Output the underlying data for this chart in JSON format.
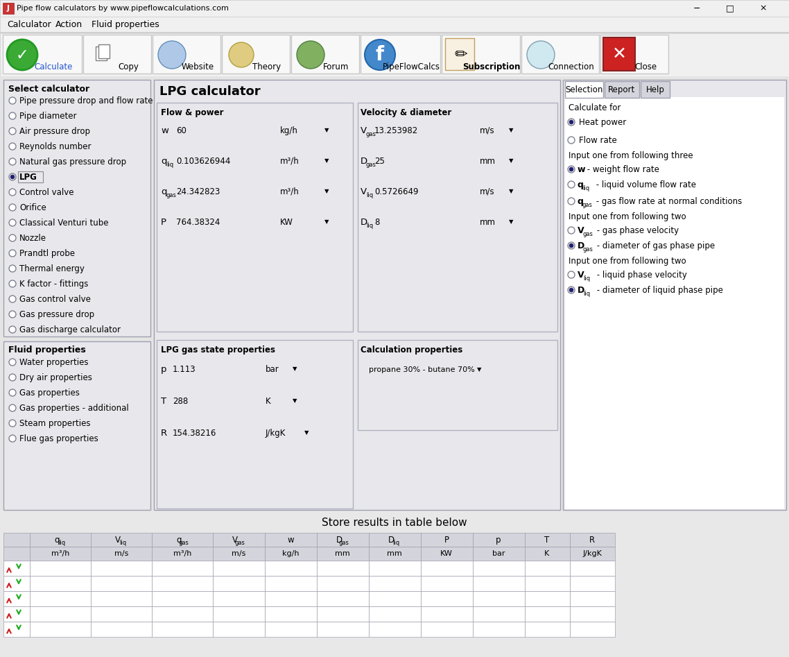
{
  "title_bar": "Pipe flow calculators by www.pipeflowcalculations.com",
  "menu_items": [
    "Calculator",
    "Action",
    "Fluid properties"
  ],
  "bg_color": "#e8e8e8",
  "select_calc_items": [
    "Pipe pressure drop and flow rate",
    "Pipe diameter",
    "Air pressure drop",
    "Reynolds number",
    "Natural gas pressure drop",
    "LPG",
    "Control valve",
    "Orifice",
    "Classical Venturi tube",
    "Nozzle",
    "Prandtl probe",
    "Thermal energy",
    "K factor - fittings",
    "Gas control valve",
    "Gas pressure drop",
    "Gas discharge calculator"
  ],
  "fluid_prop_items": [
    "Water properties",
    "Dry air properties",
    "Gas properties",
    "Gas properties - additional",
    "Steam properties",
    "Flue gas properties"
  ],
  "lpg_title": "LPG calculator",
  "flow_power_label": "Flow & power",
  "velocity_diameter_label": "Velocity & diameter",
  "lpg_gas_state_label": "LPG gas state properties",
  "calc_props_label": "Calculation properties",
  "flow_fields": [
    {
      "label": "w",
      "sub": "",
      "value": "60",
      "unit": "kg/h"
    },
    {
      "label": "q",
      "sub": "liq",
      "value": "0.103626944",
      "unit": "m³/h"
    },
    {
      "label": "q",
      "sub": "gas",
      "value": "24.342823",
      "unit": "m³/h"
    },
    {
      "label": "P",
      "sub": "",
      "value": "764.38324",
      "unit": "KW"
    }
  ],
  "vel_fields": [
    {
      "label": "V",
      "sub": "gas",
      "value": "13.253982",
      "unit": "m/s"
    },
    {
      "label": "D",
      "sub": "gas",
      "value": "25",
      "unit": "mm"
    },
    {
      "label": "V",
      "sub": "liq",
      "value": "0.5726649",
      "unit": "m/s"
    },
    {
      "label": "D",
      "sub": "liq",
      "value": "8",
      "unit": "mm"
    }
  ],
  "state_fields": [
    {
      "label": "p",
      "sub": "",
      "value": "1.113",
      "unit": "bar"
    },
    {
      "label": "T",
      "sub": "",
      "value": "288",
      "unit": "K"
    },
    {
      "label": "R",
      "sub": "",
      "value": "154.38216",
      "unit": "J/kgK"
    }
  ],
  "calc_prop_value": "propane 30% - butane 70%",
  "selection_tabs": [
    "Selection",
    "Report",
    "Help"
  ],
  "calc_for_label": "Calculate for",
  "input_three_label": "Input one from following three",
  "input_two_a_label": "Input one from following two",
  "input_two_b_label": "Input one from following two",
  "store_results_label": "Store results in table below",
  "table_headers_top": [
    "q liq",
    "V liq",
    "q gas",
    "V gas",
    "w",
    "D gas",
    "D liq",
    "P",
    "p",
    "T",
    "R"
  ],
  "table_headers_sub": [
    "m³/h",
    "m/s",
    "m³/h",
    "m/s",
    "kg/h",
    "mm",
    "mm",
    "KW",
    "bar",
    "K",
    "J/kgK"
  ],
  "table_rows": 5,
  "toolbar_btn_labels": [
    "Calculate",
    "Copy",
    "Website",
    "Theory",
    "Forum",
    "PipeFlowCalcs",
    "Subscription",
    "Connection",
    "Close"
  ],
  "toolbar_btn_widths": [
    114,
    98,
    98,
    98,
    98,
    115,
    113,
    112,
    98
  ],
  "calculate_text_color": "#2255cc",
  "subscription_bold": true
}
